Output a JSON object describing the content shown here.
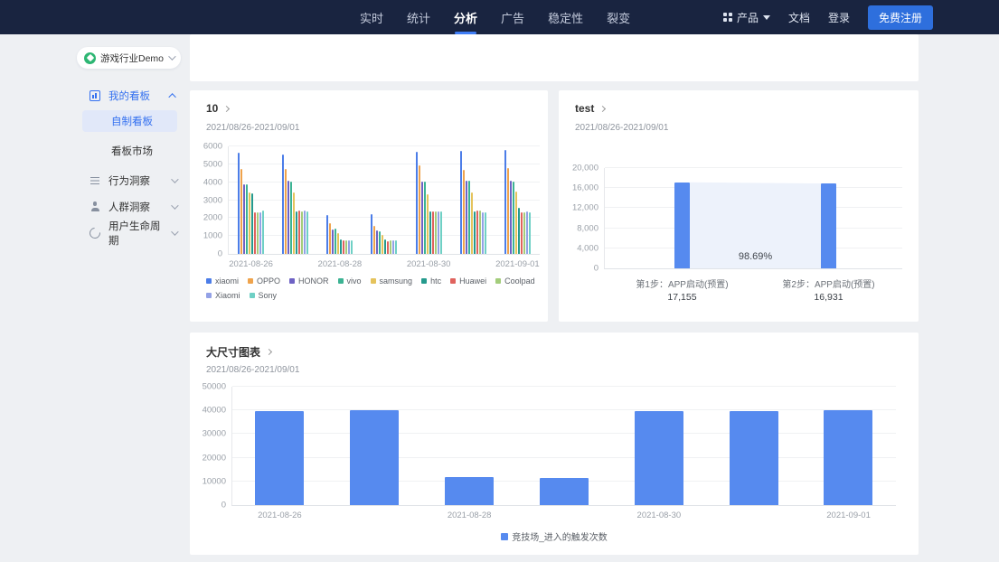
{
  "nav": {
    "tabs": [
      "实时",
      "统计",
      "分析",
      "广告",
      "稳定性",
      "裂变"
    ],
    "active_tab": "分析",
    "product_menu": "产品",
    "docs": "文档",
    "login": "登录",
    "register": "免费注册"
  },
  "sidebar": {
    "project": "游戏行业Demo",
    "my_dashboards": "我的看板",
    "custom_dashboard": "自制看板",
    "dashboard_market": "看板市场",
    "behavior_insight": "行为洞察",
    "audience_insight": "人群洞察",
    "user_lifecycle": "用户生命周期"
  },
  "charts": {
    "c1": {
      "title": "10",
      "date_range": "2021/08/26-2021/09/01"
    },
    "c2": {
      "title": "test",
      "date_range": "2021/08/26-2021/09/01"
    },
    "c3": {
      "title": "大尺寸图表",
      "date_range": "2021/08/26-2021/09/01"
    }
  },
  "chart_data": [
    {
      "type": "bar",
      "title": "10",
      "subtitle": "2021/08/26-2021/09/01",
      "x": [
        "2021-08-26",
        "2021-08-27",
        "2021-08-28",
        "2021-08-29",
        "2021-08-30",
        "2021-08-31",
        "2021-09-01"
      ],
      "x_tick_labels": [
        "2021-08-26",
        "2021-08-28",
        "2021-08-30",
        "2021-09-01"
      ],
      "ylim": [
        0,
        6000
      ],
      "yticks": [
        {
          "v": 0,
          "label": "0"
        },
        {
          "v": 1000,
          "label": "1000"
        },
        {
          "v": 2000,
          "label": "2000"
        },
        {
          "v": 3000,
          "label": "3000"
        },
        {
          "v": 4000,
          "label": "4000"
        },
        {
          "v": 5000,
          "label": "5000"
        },
        {
          "v": 6000,
          "label": "6000"
        }
      ],
      "grid": true,
      "legend_position": "bottom-left",
      "series": [
        {
          "name": "xiaomi",
          "color": "#4c7de8",
          "values": [
            5650,
            5560,
            2160,
            2200,
            5700,
            5730,
            5810
          ]
        },
        {
          "name": "OPPO",
          "color": "#efa34c",
          "values": [
            4720,
            4720,
            1700,
            1560,
            4920,
            4690,
            4780
          ]
        },
        {
          "name": "HONOR",
          "color": "#6e62c4",
          "values": [
            3900,
            4060,
            1360,
            1320,
            4010,
            4060,
            4100
          ]
        },
        {
          "name": "vivo",
          "color": "#3cb393",
          "values": [
            3880,
            4020,
            1400,
            1260,
            4050,
            4090,
            4010
          ]
        },
        {
          "name": "samsung",
          "color": "#e5c35c",
          "values": [
            3420,
            3420,
            1160,
            1060,
            3320,
            3420,
            3460
          ]
        },
        {
          "name": "htc",
          "color": "#259a8d",
          "values": [
            3360,
            2360,
            800,
            790,
            2360,
            2360,
            2560
          ]
        },
        {
          "name": "Huawei",
          "color": "#e0635e",
          "values": [
            2320,
            2400,
            780,
            720,
            2360,
            2410,
            2310
          ]
        },
        {
          "name": "Coolpad",
          "color": "#a3cd7b",
          "values": [
            2300,
            2380,
            770,
            760,
            2360,
            2430,
            2300
          ]
        },
        {
          "name": "Xiaomi",
          "color": "#93a1e6",
          "values": [
            2300,
            2400,
            770,
            760,
            2380,
            2310,
            2360
          ]
        },
        {
          "name": "Sony",
          "color": "#6fd0c5",
          "values": [
            2430,
            2390,
            770,
            760,
            2360,
            2330,
            2340
          ]
        }
      ]
    },
    {
      "type": "bar",
      "subtype": "funnel",
      "title": "test",
      "subtitle": "2021/08/26-2021/09/01",
      "ylim": [
        0,
        20000
      ],
      "yticks": [
        {
          "v": 0,
          "label": "0"
        },
        {
          "v": 4000,
          "label": "4,000"
        },
        {
          "v": 8000,
          "label": "8,000"
        },
        {
          "v": 12000,
          "label": "12,000"
        },
        {
          "v": 16000,
          "label": "16,000"
        },
        {
          "v": 20000,
          "label": "20,000"
        }
      ],
      "grid": true,
      "bar_color": "#568aef",
      "band_color": "#edf2fb",
      "conversion_rate": "98.69%",
      "steps": [
        {
          "label": "第1步：APP启动(预置)",
          "value": 17155,
          "value_label": "17,155"
        },
        {
          "label": "第2步：APP启动(预置)",
          "value": 16931,
          "value_label": "16,931"
        }
      ]
    },
    {
      "type": "bar",
      "title": "大尺寸图表",
      "subtitle": "2021/08/26-2021/09/01",
      "x": [
        "2021-08-26",
        "2021-08-27",
        "2021-08-28",
        "2021-08-29",
        "2021-08-30",
        "2021-08-31",
        "2021-09-01"
      ],
      "x_tick_labels": [
        "2021-08-26",
        "2021-08-28",
        "2021-08-30",
        "2021-09-01"
      ],
      "ylim": [
        0,
        50000
      ],
      "yticks": [
        {
          "v": 0,
          "label": "0"
        },
        {
          "v": 10000,
          "label": "10000"
        },
        {
          "v": 20000,
          "label": "20000"
        },
        {
          "v": 30000,
          "label": "30000"
        },
        {
          "v": 40000,
          "label": "40000"
        },
        {
          "v": 50000,
          "label": "50000"
        }
      ],
      "grid": true,
      "legend_position": "bottom-center",
      "series": [
        {
          "name": "竞技场_进入的触发次数",
          "color": "#568aef",
          "values": [
            39800,
            39900,
            11700,
            11600,
            39800,
            39850,
            39900
          ]
        }
      ]
    }
  ]
}
